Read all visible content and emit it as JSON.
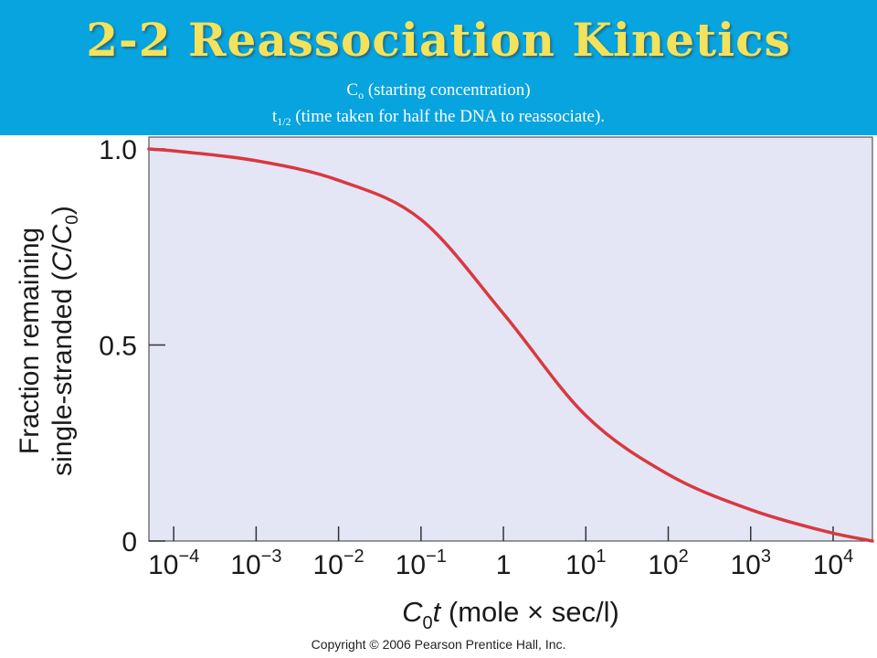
{
  "slide": {
    "title": "2-2 Reassociation Kinetics",
    "line1_main": "C",
    "line1_sub": "o",
    "line1_rest": " (starting concentration)",
    "line2_main": "t",
    "line2_sub": "1/2",
    "line2_rest": " (time taken for half the DNA to reassociate).",
    "copyright": "Copyright © 2006 Pearson Prentice Hall, Inc."
  },
  "colors": {
    "header_bg": "#07a4df",
    "title": "#f3e25a",
    "plot_bg": "#e4e6f6",
    "curve": "#d8393f"
  },
  "chart_data": {
    "type": "line",
    "xscale": "log",
    "xlabel": "C0t (mole × sec/l)",
    "ylabel_line1": "Fraction remaining",
    "ylabel_line2": "single-stranded (C/C0)",
    "ylim": [
      0,
      1.0
    ],
    "xlim": [
      5e-05,
      30000
    ],
    "y_ticks": [
      "0",
      "0.5",
      "1.0"
    ],
    "x_ticks": [
      "10^-4",
      "10^-3",
      "10^-2",
      "10^-1",
      "1",
      "10^1",
      "10^2",
      "10^3",
      "10^4"
    ],
    "series": [
      {
        "x": [
          5e-05,
          0.0001,
          0.001,
          0.01,
          0.1,
          1,
          10,
          100,
          1000,
          10000,
          30000
        ],
        "y": [
          1.0,
          0.995,
          0.97,
          0.92,
          0.82,
          0.58,
          0.32,
          0.17,
          0.08,
          0.02,
          0.0
        ]
      }
    ]
  }
}
